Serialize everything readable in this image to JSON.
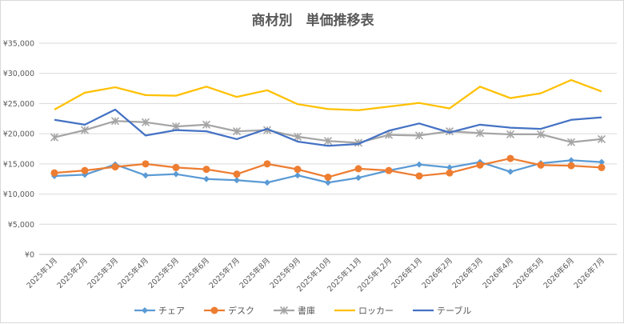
{
  "chart_data": {
    "type": "line",
    "title": "商材別　単価推移表",
    "xlabel": "",
    "ylabel": "",
    "ylim": [
      0,
      35000
    ],
    "y_ticks": [
      0,
      5000,
      10000,
      15000,
      20000,
      25000,
      30000,
      35000
    ],
    "y_tick_labels": [
      "¥0",
      "¥5,000",
      "¥10,000",
      "¥15,000",
      "¥20,000",
      "¥25,000",
      "¥30,000",
      "¥35,000"
    ],
    "grid": true,
    "legend_position": "bottom",
    "categories": [
      "2025年1月",
      "2025年2月",
      "2025年3月",
      "2025年4月",
      "2025年5月",
      "2025年6月",
      "2025年7月",
      "2025年8月",
      "2025年9月",
      "2025年10月",
      "2025年11月",
      "2025年12月",
      "2026年1月",
      "2026年2月",
      "2026年3月",
      "2026年4月",
      "2026年5月",
      "2026年6月",
      "2026年7月"
    ],
    "series": [
      {
        "name": "チェア",
        "color": "#5b9bd5",
        "marker": "diamond",
        "values": [
          13000,
          13200,
          14900,
          13100,
          13300,
          12500,
          12300,
          11900,
          13100,
          11900,
          12700,
          13900,
          14900,
          14400,
          15300,
          13700,
          15100,
          15600,
          15300
        ]
      },
      {
        "name": "デスク",
        "color": "#ed7d31",
        "marker": "circle",
        "values": [
          13500,
          13900,
          14500,
          15000,
          14400,
          14100,
          13300,
          15000,
          14100,
          12800,
          14200,
          13900,
          13000,
          13500,
          14800,
          15900,
          14800,
          14700,
          14400
        ]
      },
      {
        "name": "書庫",
        "color": "#a5a5a5",
        "marker": "star",
        "values": [
          19400,
          20600,
          22100,
          21900,
          21200,
          21500,
          20400,
          20600,
          19500,
          18800,
          18500,
          19800,
          19700,
          20400,
          20100,
          19900,
          19900,
          18600,
          19100
        ]
      },
      {
        "name": "ロッカー",
        "color": "#ffc000",
        "marker": "none",
        "values": [
          24000,
          26800,
          27700,
          26400,
          26300,
          27800,
          26100,
          27200,
          24900,
          24100,
          23900,
          24500,
          25100,
          24200,
          27800,
          25900,
          26700,
          28900,
          27000
        ]
      },
      {
        "name": "テーブル",
        "color": "#4472c4",
        "marker": "none",
        "values": [
          22300,
          21500,
          24000,
          19700,
          20600,
          20400,
          19100,
          20800,
          18700,
          18000,
          18300,
          20500,
          21700,
          20200,
          21500,
          21000,
          20800,
          22300,
          22700
        ]
      }
    ]
  }
}
